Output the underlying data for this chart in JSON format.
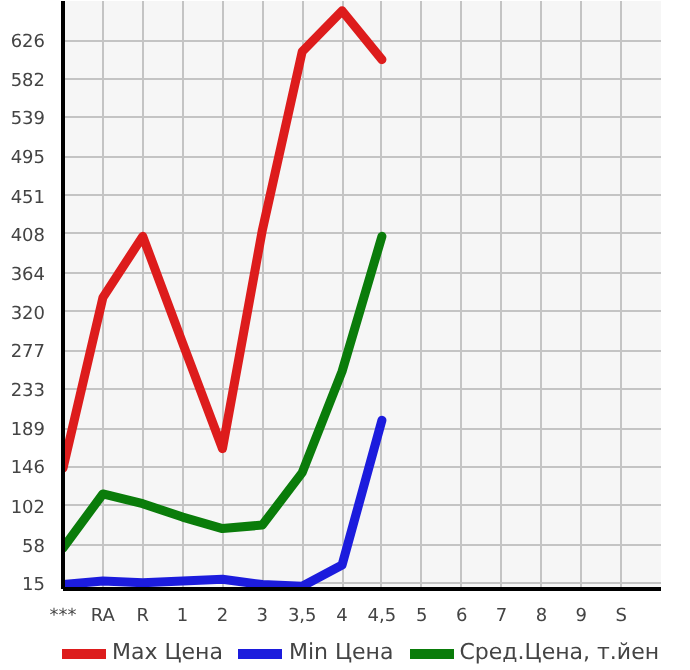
{
  "chart_data": {
    "type": "line",
    "categories": [
      "***",
      "RA",
      "R",
      "1",
      "2",
      "3",
      "3,5",
      "4",
      "4,5",
      "5",
      "6",
      "7",
      "8",
      "9",
      "S"
    ],
    "series": [
      {
        "name": "Max Цена",
        "color": "#dd1c1c",
        "values": [
          144,
          336,
          405,
          285,
          166,
          412,
          613,
          659,
          604,
          null,
          null,
          null,
          null,
          null,
          null
        ]
      },
      {
        "name": "Min Цена",
        "color": "#1c1cdd",
        "values": [
          13,
          17,
          15,
          17,
          19,
          13,
          11,
          35,
          198,
          null,
          null,
          null,
          null,
          null,
          null
        ]
      },
      {
        "name": "Сред.Цена, т.йен",
        "color": "#0a7c0a",
        "values": [
          54,
          115,
          104,
          89,
          76,
          80,
          139,
          253,
          405,
          null,
          null,
          null,
          null,
          null,
          null
        ]
      }
    ],
    "ylim": [
      8,
      670
    ],
    "yticks": [
      15,
      58,
      102,
      146,
      189,
      233,
      277,
      320,
      364,
      408,
      451,
      495,
      539,
      582,
      626
    ],
    "grid": true,
    "legend": "bottom",
    "marker": "none",
    "line_style": "solid"
  }
}
